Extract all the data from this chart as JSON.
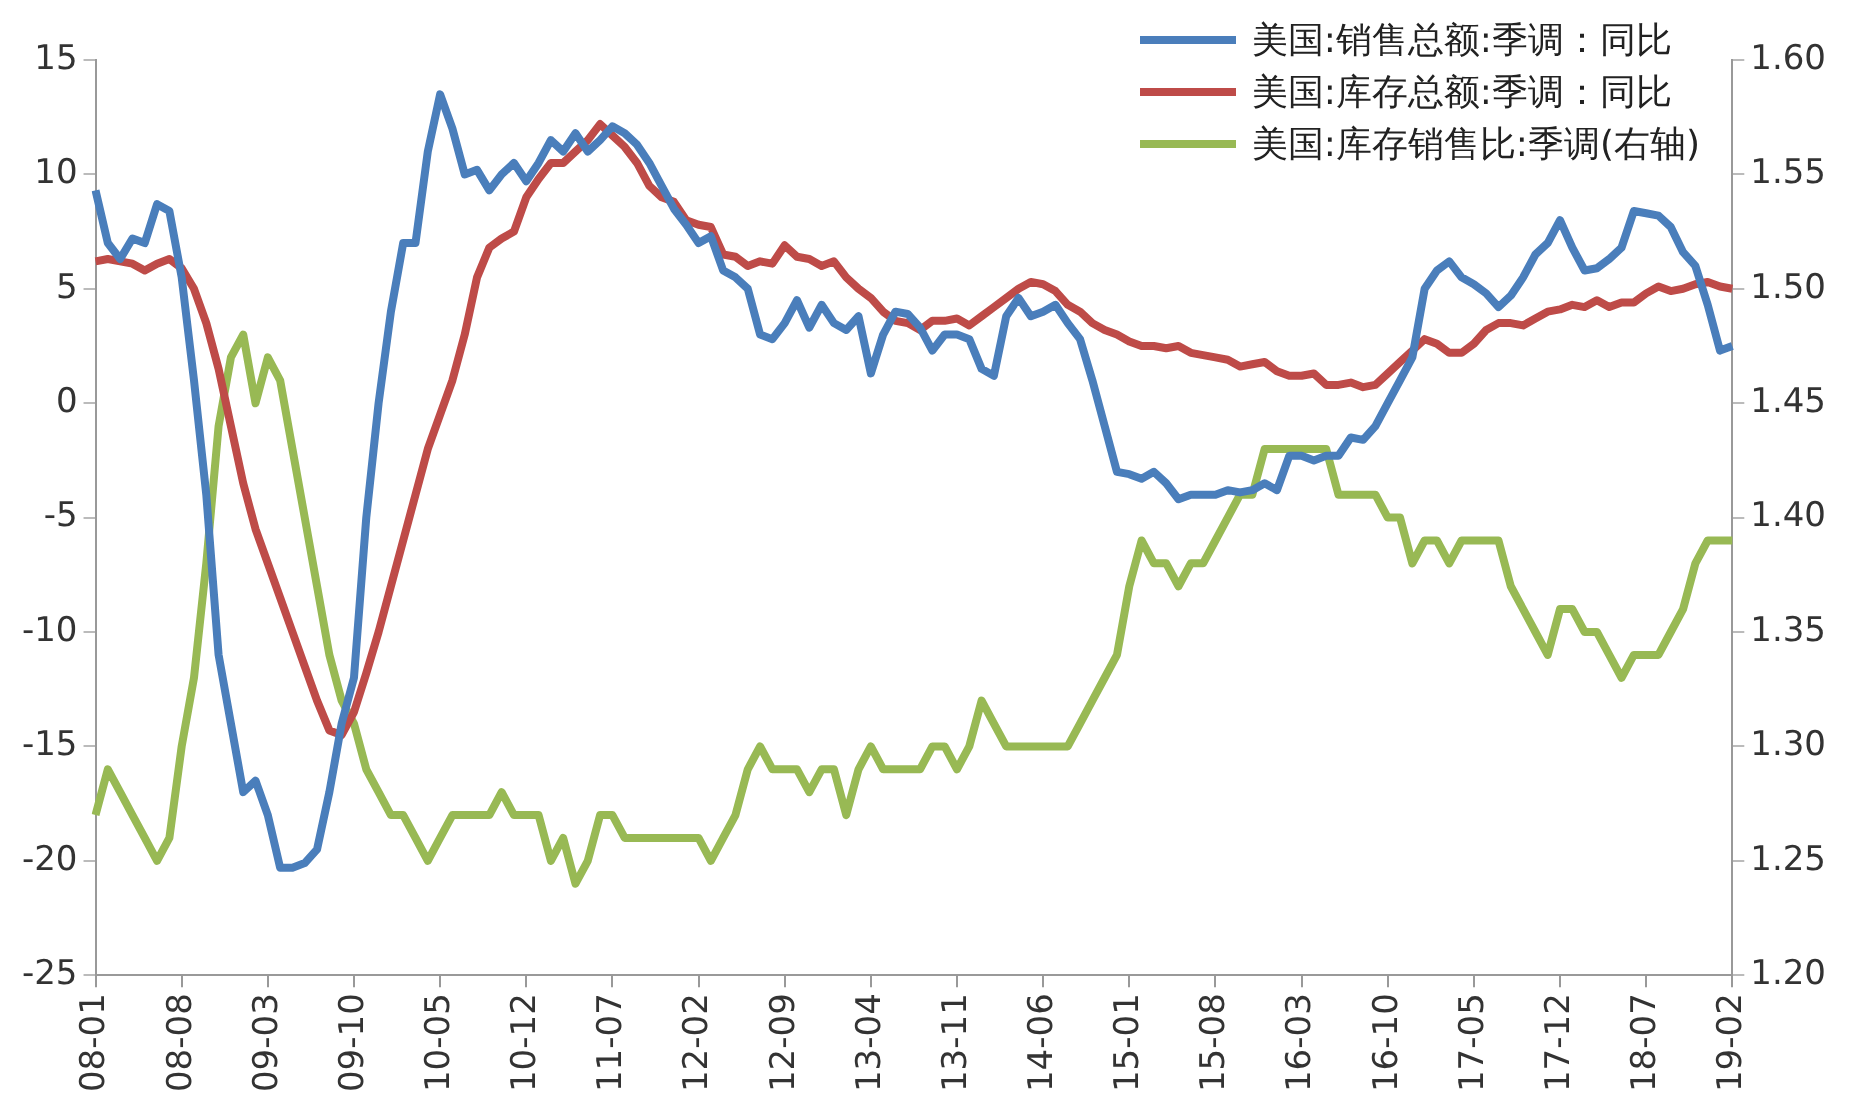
{
  "chart_data": {
    "type": "line",
    "categories": [
      "08-01",
      null,
      null,
      null,
      null,
      null,
      null,
      "08-08",
      null,
      null,
      null,
      null,
      null,
      null,
      "09-03",
      null,
      null,
      null,
      null,
      null,
      null,
      "09-10",
      null,
      null,
      null,
      null,
      null,
      null,
      "10-05",
      null,
      null,
      null,
      null,
      null,
      null,
      "10-12",
      null,
      null,
      null,
      null,
      null,
      null,
      "11-07",
      null,
      null,
      null,
      null,
      null,
      null,
      "12-02",
      null,
      null,
      null,
      null,
      null,
      null,
      "12-09",
      null,
      null,
      null,
      null,
      null,
      null,
      "13-04",
      null,
      null,
      null,
      null,
      null,
      null,
      "13-11",
      null,
      null,
      null,
      null,
      null,
      null,
      "14-06",
      null,
      null,
      null,
      null,
      null,
      null,
      "15-01",
      null,
      null,
      null,
      null,
      null,
      null,
      "15-08",
      null,
      null,
      null,
      null,
      null,
      null,
      "16-03",
      null,
      null,
      null,
      null,
      null,
      null,
      "16-10",
      null,
      null,
      null,
      null,
      null,
      null,
      "17-05",
      null,
      null,
      null,
      null,
      null,
      null,
      "17-12",
      null,
      null,
      null,
      null,
      null,
      null,
      "18-07",
      null,
      null,
      null,
      null,
      null,
      null,
      "19-02"
    ],
    "series": [
      {
        "name": "美国:销售总额:季调：同比",
        "color": "#4a7ebb",
        "values": [
          9.3,
          7,
          6.3,
          7.2,
          7,
          8.7,
          8.4,
          5.5,
          1,
          -4,
          -11,
          -14,
          -17,
          -16.5,
          -18,
          -20.3,
          -20.3,
          -20.1,
          -19.5,
          -17,
          -14,
          -12,
          -5,
          0,
          4,
          7,
          7,
          11,
          13.5,
          12,
          10,
          10.2,
          9.3,
          10,
          10.5,
          9.7,
          10.5,
          11.5,
          11,
          11.8,
          11,
          11.5,
          12.1,
          11.8,
          11.3,
          10.5,
          9.5,
          8.5,
          7.8,
          7,
          7.3,
          5.8,
          5.5,
          5,
          3,
          2.8,
          3.5,
          4.5,
          3.3,
          4.3,
          3.5,
          3.2,
          3.8,
          1.3,
          3,
          4,
          3.9,
          3.3,
          2.3,
          3,
          3,
          2.8,
          1.5,
          1.2,
          3.8,
          4.6,
          3.8,
          4,
          4.3,
          3.5,
          2.8,
          1,
          -1,
          -3,
          -3.1,
          -3.3,
          -3,
          -3.5,
          -4.2,
          -4,
          -4,
          -4,
          -3.8,
          -3.9,
          -3.8,
          -3.5,
          -3.8,
          -2.3,
          -2.3,
          -2.5,
          -2.3,
          -2.3,
          -1.5,
          -1.6,
          -1,
          0,
          1,
          2,
          5,
          5.8,
          6.2,
          5.5,
          5.2,
          4.8,
          4.2,
          4.7,
          5.5,
          6.5,
          7,
          8,
          6.8,
          5.8,
          5.9,
          6.3,
          6.8,
          8.4,
          8.3,
          8.2,
          7.7,
          6.6,
          6,
          4.3,
          2.3,
          2.5
        ]
      },
      {
        "name": "美国:库存总额:季调：同比",
        "color": "#be4b48",
        "values": [
          6.2,
          6.3,
          6.2,
          6.1,
          5.8,
          6.1,
          6.3,
          5.9,
          5,
          3.5,
          1.5,
          -1,
          -3.5,
          -5.5,
          -7,
          -8.5,
          -10,
          -11.5,
          -13,
          -14.3,
          -14.5,
          -13.5,
          -11.8,
          -10,
          -8,
          -6,
          -4,
          -2,
          -0.5,
          1,
          3,
          5.5,
          6.8,
          7.2,
          7.5,
          9,
          9.8,
          10.5,
          10.5,
          11,
          11.5,
          12.2,
          11.7,
          11.2,
          10.5,
          9.5,
          9,
          8.8,
          8,
          7.8,
          7.7,
          6.5,
          6.4,
          6,
          6.2,
          6.1,
          6.9,
          6.4,
          6.3,
          6,
          6.2,
          5.5,
          5,
          4.6,
          4,
          3.6,
          3.5,
          3.2,
          3.6,
          3.6,
          3.7,
          3.4,
          3.8,
          4.2,
          4.6,
          5,
          5.3,
          5.2,
          4.9,
          4.3,
          4,
          3.5,
          3.2,
          3,
          2.7,
          2.5,
          2.5,
          2.4,
          2.5,
          2.2,
          2.1,
          2,
          1.9,
          1.6,
          1.7,
          1.8,
          1.4,
          1.2,
          1.2,
          1.3,
          0.8,
          0.8,
          0.9,
          0.7,
          0.8,
          1.3,
          1.8,
          2.3,
          2.8,
          2.6,
          2.2,
          2.2,
          2.6,
          3.2,
          3.5,
          3.5,
          3.4,
          3.7,
          4,
          4.1,
          4.3,
          4.2,
          4.5,
          4.2,
          4.4,
          4.4,
          4.8,
          5.1,
          4.9,
          5,
          5.2,
          5.3,
          5.1,
          5
        ]
      },
      {
        "name": "美国:库存销售比:季调(右轴)",
        "color": "#98b954",
        "axis": "y2",
        "values": [
          1.27,
          1.29,
          1.28,
          1.27,
          1.26,
          1.25,
          1.26,
          1.3,
          1.33,
          1.38,
          1.44,
          1.47,
          1.48,
          1.45,
          1.47,
          1.46,
          1.43,
          1.4,
          1.37,
          1.34,
          1.32,
          1.31,
          1.29,
          1.28,
          1.27,
          1.27,
          1.26,
          1.25,
          1.26,
          1.27,
          1.27,
          1.27,
          1.27,
          1.28,
          1.27,
          1.27,
          1.27,
          1.25,
          1.26,
          1.24,
          1.25,
          1.27,
          1.27,
          1.26,
          1.26,
          1.26,
          1.26,
          1.26,
          1.26,
          1.26,
          1.25,
          1.26,
          1.27,
          1.29,
          1.3,
          1.29,
          1.29,
          1.29,
          1.28,
          1.29,
          1.29,
          1.27,
          1.29,
          1.3,
          1.29,
          1.29,
          1.29,
          1.29,
          1.3,
          1.3,
          1.29,
          1.3,
          1.32,
          1.31,
          1.3,
          1.3,
          1.3,
          1.3,
          1.3,
          1.3,
          1.31,
          1.32,
          1.33,
          1.34,
          1.37,
          1.39,
          1.38,
          1.38,
          1.37,
          1.38,
          1.38,
          1.39,
          1.4,
          1.41,
          1.41,
          1.43,
          1.43,
          1.43,
          1.43,
          1.43,
          1.43,
          1.41,
          1.41,
          1.41,
          1.41,
          1.4,
          1.4,
          1.38,
          1.39,
          1.39,
          1.38,
          1.39,
          1.39,
          1.39,
          1.39,
          1.37,
          1.36,
          1.35,
          1.34,
          1.36,
          1.36,
          1.35,
          1.35,
          1.34,
          1.33,
          1.34,
          1.34,
          1.34,
          1.35,
          1.36,
          1.38,
          1.39,
          1.39,
          1.39
        ]
      }
    ],
    "ylim": [
      -25,
      15
    ],
    "yticks": [
      -25,
      -20,
      -15,
      -10,
      -5,
      0,
      5,
      10,
      15
    ],
    "y2lim": [
      1.2,
      1.6
    ],
    "y2ticks": [
      {
        "value": 1.2,
        "label": "1.20"
      },
      {
        "value": 1.25,
        "label": "1.25"
      },
      {
        "value": 1.3,
        "label": "1.30"
      },
      {
        "value": 1.35,
        "label": "1.35"
      },
      {
        "value": 1.4,
        "label": "1.40"
      },
      {
        "value": 1.45,
        "label": "1.45"
      },
      {
        "value": 1.5,
        "label": "1.50"
      },
      {
        "value": 1.55,
        "label": "1.55"
      },
      {
        "value": 1.6,
        "label": "1.60"
      }
    ],
    "grid": false,
    "legend": "top right"
  }
}
